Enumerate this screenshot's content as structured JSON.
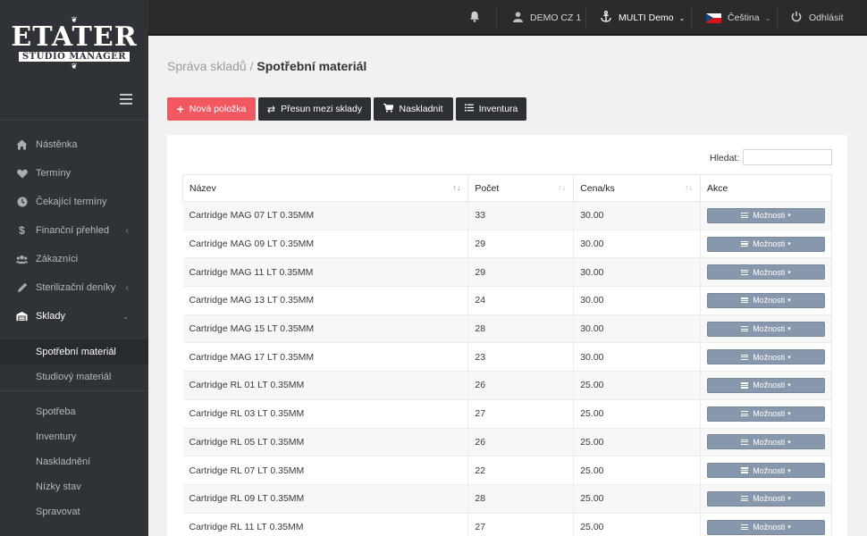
{
  "brand": {
    "title": "ETATER",
    "subtitle": "STUDIO MANAGER"
  },
  "topbar": {
    "account": "DEMO CZ 1",
    "multi": "MULTI Demo",
    "language": "Čeština",
    "logout": "Odhlásit"
  },
  "sidebar": {
    "items": [
      {
        "label": "Nástěnka",
        "icon": "home-icon"
      },
      {
        "label": "Termíny",
        "icon": "heart-icon"
      },
      {
        "label": "Čekající termíny",
        "icon": "clock-icon"
      },
      {
        "label": "Finanční přehled",
        "icon": "dollar-icon"
      },
      {
        "label": "Zákazníci",
        "icon": "users-icon"
      },
      {
        "label": "Sterilizační deníky",
        "icon": "pen-icon"
      },
      {
        "label": "Sklady",
        "icon": "warehouse-icon"
      }
    ],
    "sub_items": [
      "Spotřební materiál",
      "Studiový materiál"
    ],
    "lower_items": [
      "Spotřeba",
      "Inventury",
      "Naskladnění",
      "Nízky stav",
      "Spravovat"
    ]
  },
  "breadcrumb": {
    "parent": "Správa skladů",
    "sep": "/",
    "current": "Spotřební materiál"
  },
  "toolbar": {
    "new_item": "Nová položka",
    "transfer": "Přesun mezi sklady",
    "stock_in": "Naskladnit",
    "inventory": "Inventura"
  },
  "search": {
    "label": "Hledat:",
    "value": ""
  },
  "table": {
    "headers": [
      "Název",
      "Počet",
      "Cena/ks",
      "Akce"
    ],
    "action_label": "Možnosti",
    "rows": [
      [
        "Cartridge MAG 07 LT 0.35MM",
        "33",
        "30.00"
      ],
      [
        "Cartridge MAG 09 LT 0.35MM",
        "29",
        "30.00"
      ],
      [
        "Cartridge MAG 11 LT 0.35MM",
        "29",
        "30.00"
      ],
      [
        "Cartridge MAG 13 LT 0.35MM",
        "24",
        "30.00"
      ],
      [
        "Cartridge MAG 15 LT 0.35MM",
        "28",
        "30.00"
      ],
      [
        "Cartridge MAG 17 LT 0.35MM",
        "23",
        "30.00"
      ],
      [
        "Cartridge RL 01 LT 0.35MM",
        "26",
        "25.00"
      ],
      [
        "Cartridge RL 03 LT 0.35MM",
        "27",
        "25.00"
      ],
      [
        "Cartridge RL 05 LT 0.35MM",
        "26",
        "25.00"
      ],
      [
        "Cartridge RL 07 LT 0.35MM",
        "22",
        "25.00"
      ],
      [
        "Cartridge RL 09 LT 0.35MM",
        "28",
        "25.00"
      ],
      [
        "Cartridge RL 11 LT 0.35MM",
        "27",
        "25.00"
      ]
    ]
  }
}
